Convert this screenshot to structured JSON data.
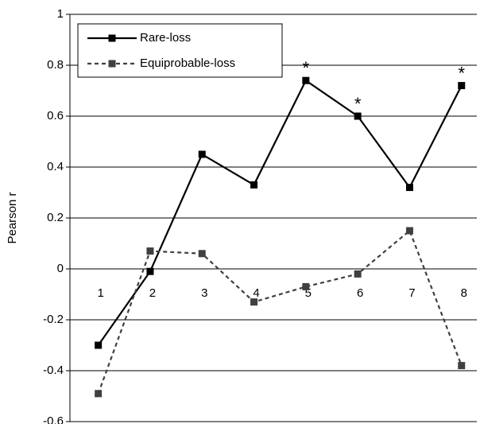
{
  "chart_data": {
    "type": "line",
    "y_label": "Pearson r",
    "categories": [
      "1",
      "2",
      "3",
      "4",
      "5",
      "6",
      "7",
      "8"
    ],
    "series": [
      {
        "name": "Rare-loss",
        "color": "#000000",
        "dash": false,
        "values": [
          -0.3,
          -0.01,
          0.45,
          0.33,
          0.74,
          0.6,
          0.32,
          0.72
        ]
      },
      {
        "name": "Equiprobable-loss",
        "color": "#404040",
        "dash": true,
        "values": [
          -0.49,
          0.07,
          0.06,
          -0.13,
          -0.07,
          -0.02,
          0.15,
          -0.38
        ]
      }
    ],
    "annotations": [
      {
        "text": "*",
        "x": "5"
      },
      {
        "text": "*",
        "x": "6"
      },
      {
        "text": "*",
        "x": "8"
      }
    ],
    "ylim": [
      -0.6,
      1
    ],
    "yticks": [
      -0.6,
      -0.4,
      -0.2,
      0,
      0.2,
      0.4,
      0.6,
      0.8,
      1
    ],
    "grid": true,
    "legend": "top-left"
  }
}
